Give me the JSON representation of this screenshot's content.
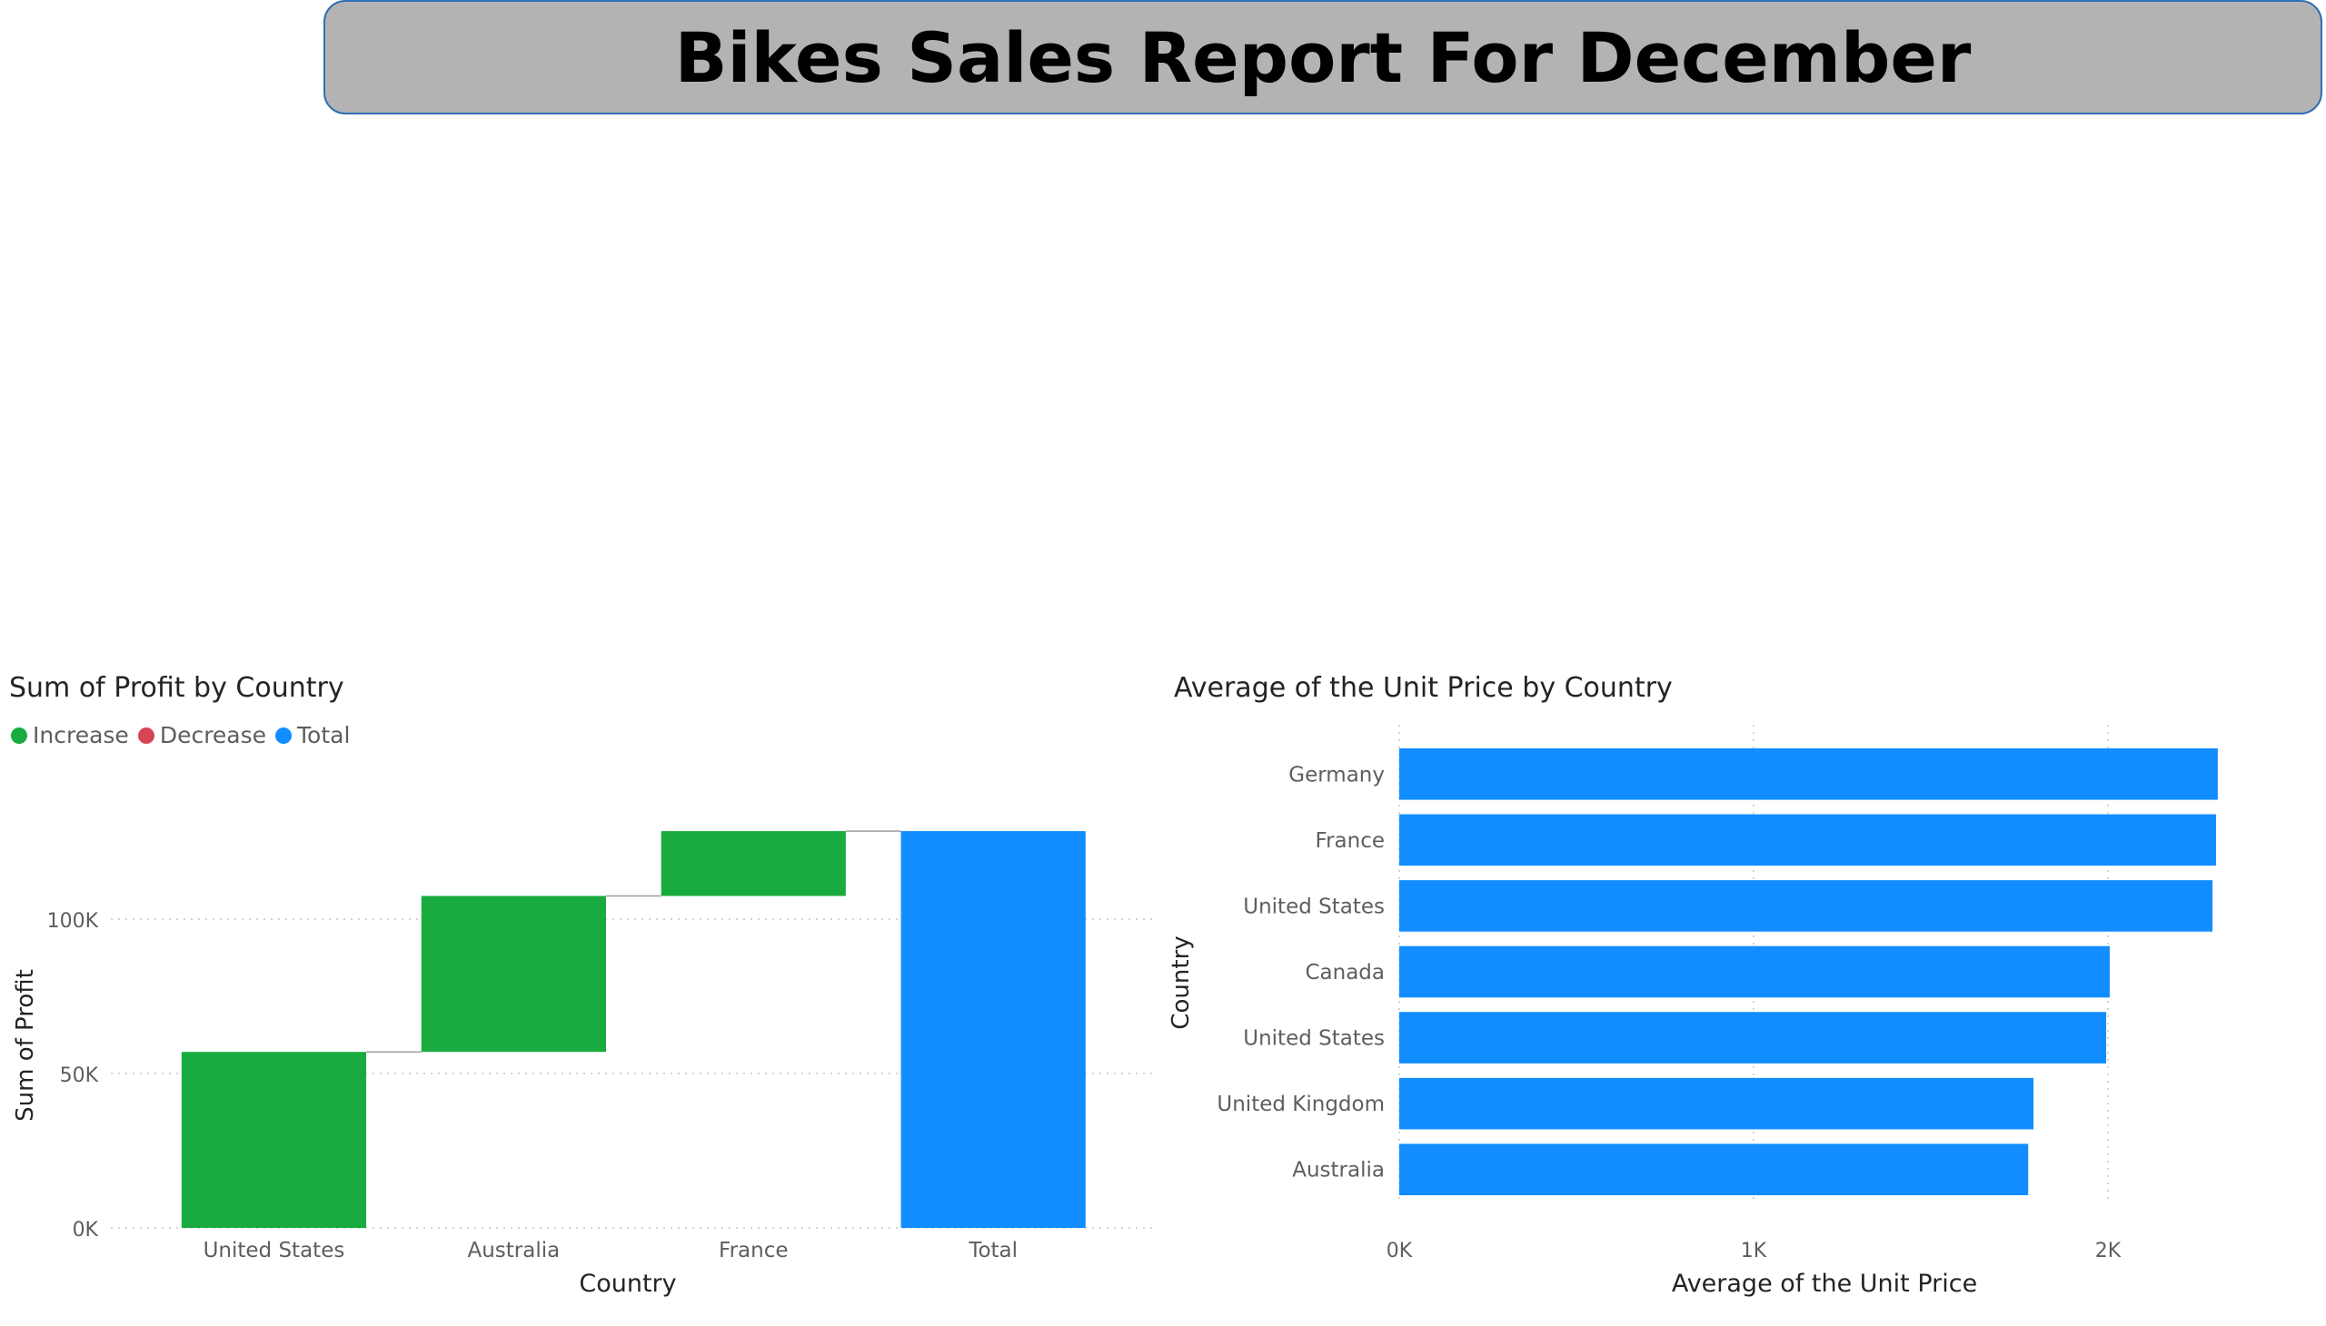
{
  "report": {
    "title": "Bikes Sales Report For December"
  },
  "colors": {
    "increase": "#1aab40",
    "decrease": "#d64554",
    "total": "#118dff",
    "bar": "#118dff",
    "banner_bg": "#b3b3b3",
    "banner_border": "#2f6fb3",
    "gridline": "#c8c6c4",
    "connector": "#9e9e9e"
  },
  "chart_data": [
    {
      "type": "bar",
      "variant": "waterfall",
      "title": "Sum of Profit by Country",
      "xlabel": "Country",
      "ylabel": "Sum of Profit",
      "categories": [
        "United States",
        "Australia",
        "France",
        "Total"
      ],
      "values": [
        57000,
        50500,
        21000,
        128500
      ],
      "kinds": [
        "increase",
        "increase",
        "increase",
        "total"
      ],
      "legend": [
        {
          "label": "Increase",
          "color_key": "increase"
        },
        {
          "label": "Decrease",
          "color_key": "decrease"
        },
        {
          "label": "Total",
          "color_key": "total"
        }
      ],
      "legend_position": "top-left",
      "ylim": [
        0,
        130000
      ],
      "yticks": [
        0,
        50000,
        100000
      ],
      "ytick_labels": [
        "0K",
        "50K",
        "100K"
      ],
      "grid": true
    },
    {
      "type": "bar",
      "orientation": "horizontal",
      "title": "Average of the Unit Price by Country",
      "xlabel": "Average of the Unit Price",
      "ylabel": "Country",
      "categories": [
        "Germany",
        "France",
        "United States",
        "Canada",
        "United States",
        "United Kingdom",
        "Australia"
      ],
      "values": [
        2310,
        2305,
        2295,
        2005,
        1995,
        1790,
        1775
      ],
      "xlim": [
        0,
        2400
      ],
      "xticks": [
        0,
        1000,
        2000
      ],
      "xtick_labels": [
        "0K",
        "1K",
        "2K"
      ],
      "grid": true
    }
  ]
}
